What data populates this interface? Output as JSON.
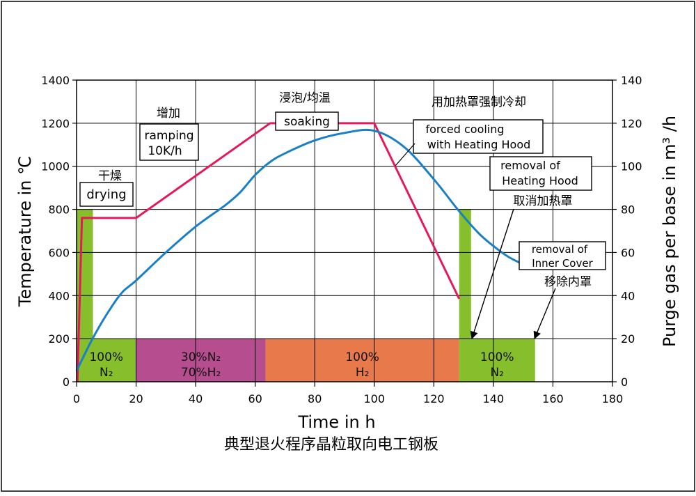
{
  "chart_data": {
    "type": "line",
    "title": "典型退火程序晶粒取向电工钢板",
    "xlabel": "Time in h",
    "ylabel_left": "Temperature in ℃",
    "ylabel_right": "Purge gas per base in m³ /h",
    "xlim": [
      0,
      180
    ],
    "ylim_left": [
      0,
      1400
    ],
    "ylim_right": [
      0,
      140
    ],
    "x_ticks": [
      0,
      20,
      40,
      60,
      80,
      100,
      120,
      140,
      160,
      180
    ],
    "y_ticks_left": [
      0,
      200,
      400,
      600,
      800,
      1000,
      1200,
      1400
    ],
    "y_ticks_right": [
      0,
      20,
      40,
      60,
      80,
      100,
      120,
      140
    ],
    "grid": true,
    "series": [
      {
        "name": "",
        "color": "#e5195a",
        "axis": "left",
        "x": [
          0.3,
          1.8,
          20,
          65,
          70,
          100,
          128.5
        ],
        "y": [
          0,
          760,
          760,
          1200,
          1200,
          1200,
          385
        ]
      },
      {
        "name": "",
        "color": "#1a80c6",
        "axis": "left",
        "x": [
          0,
          5,
          10,
          15,
          20,
          30,
          40,
          50,
          55,
          60,
          65,
          70,
          80,
          90,
          100,
          110,
          120,
          128,
          135,
          140,
          145,
          150
        ],
        "y": [
          50,
          190,
          310,
          410,
          470,
          600,
          720,
          820,
          880,
          960,
          1020,
          1060,
          1120,
          1155,
          1165,
          1090,
          940,
          800,
          690,
          630,
          580,
          545
        ]
      }
    ],
    "gas_bands": [
      {
        "label_top": "100%",
        "label_bottom": "N₂",
        "color": "#86be2c",
        "x0": 0,
        "x1": 20
      },
      {
        "label_top": "30%N₂",
        "label_bottom": "70%H₂",
        "color": "#b64d8e",
        "x0": 20,
        "x1": 63.5
      },
      {
        "label_top": "100%",
        "label_bottom": "H₂",
        "color": "#e8794a",
        "x0": 63.5,
        "x1": 128.5
      },
      {
        "label_top": "100%",
        "label_bottom": "N₂",
        "color": "#86be2c",
        "x0": 128.5,
        "x1": 154
      }
    ],
    "gas_band_flow": 20,
    "green_bars": [
      {
        "x0": 0,
        "x1": 5.5,
        "y": 800
      },
      {
        "x0": 128.5,
        "x1": 132.5,
        "y": 800
      }
    ],
    "annotations": {
      "drying_cn": "干燥",
      "drying_en": "drying",
      "ramping_cn": "增加",
      "ramping_en_1": "ramping",
      "ramping_en_2": "10K/h",
      "soaking_cn": "浸泡/均温",
      "soaking_en": "soaking",
      "cooling_cn": "用加热罩强制冷却",
      "cooling_en_1": "forced cooling",
      "cooling_en_2": "with Heating Hood",
      "hood_en_1": "removal of",
      "hood_en_2": "Heating Hood",
      "hood_cn": "取消加热罩",
      "inner_en_1": "removal of",
      "inner_en_2": "Inner Cover",
      "inner_cn": "移除内罩"
    }
  }
}
